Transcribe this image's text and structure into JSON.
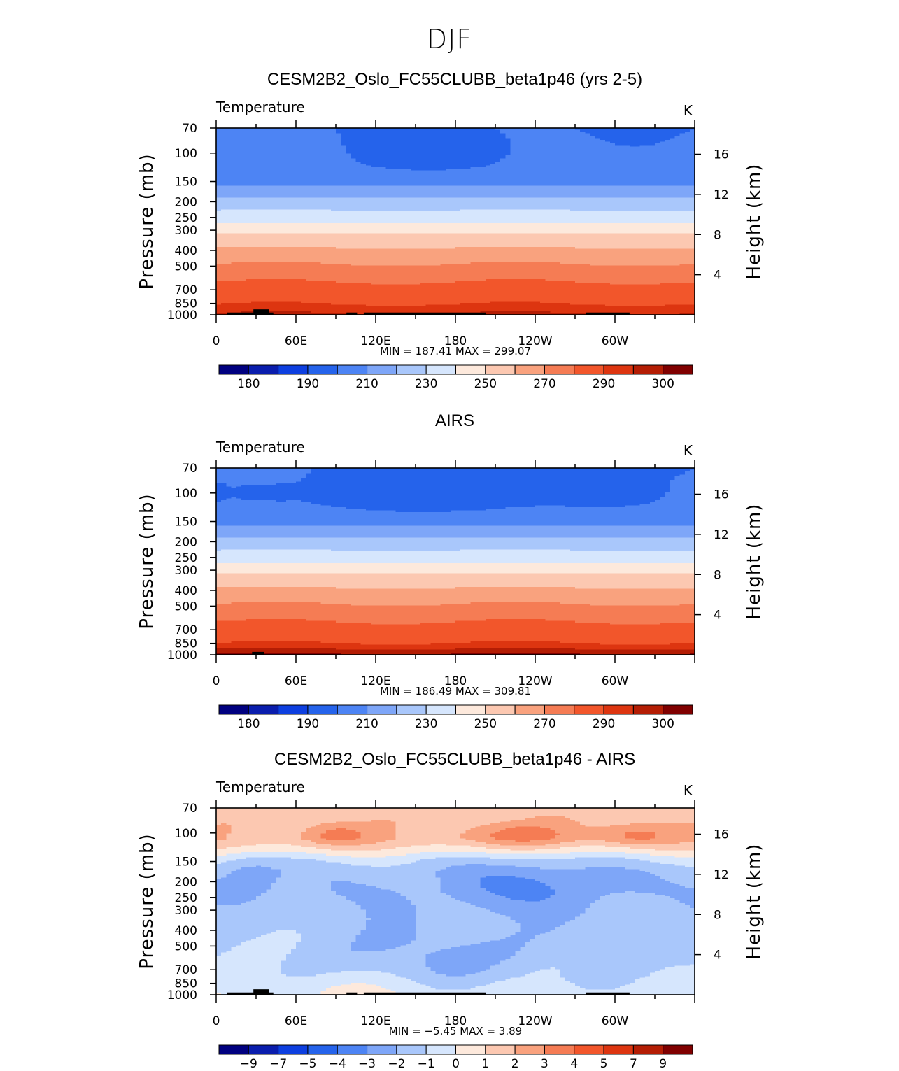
{
  "figure": {
    "suptitle": "DJF"
  },
  "chart_data": [
    {
      "type": "heatmap",
      "title": "CESM2B2_Oslo_FC55CLUBB_beta1p46 (yrs 2-5)",
      "variable": "Temperature",
      "units": "K",
      "ylabel": "Pressure (mb)",
      "y2label": "Height (km)",
      "x_ticks": [
        "0",
        "60E",
        "120E",
        "180",
        "120W",
        "60W"
      ],
      "x_tick_lon": [
        0,
        60,
        120,
        180,
        240,
        300
      ],
      "xlim": [
        0,
        360
      ],
      "y_ticks": [
        "70",
        "100",
        "150",
        "200",
        "250",
        "300",
        "400",
        "500",
        "700",
        "850",
        "1000"
      ],
      "y_tick_p": [
        70,
        100,
        150,
        200,
        250,
        300,
        400,
        500,
        700,
        850,
        1000
      ],
      "ylim": [
        1000,
        70
      ],
      "y2_ticks": [
        "16",
        "12",
        "8",
        "4"
      ],
      "y2_tick_km": [
        16,
        12,
        8,
        4
      ],
      "stats": "MIN  =  187.41   MAX  =  299.07",
      "min": 187.41,
      "max": 299.07,
      "levels": [
        175,
        180,
        185,
        190,
        200,
        210,
        220,
        230,
        240,
        250,
        260,
        270,
        280,
        290,
        295,
        300,
        305
      ],
      "colorbar_labels": [
        "180",
        "190",
        "210",
        "230",
        "250",
        "270",
        "290",
        "300"
      ],
      "colorbar_colors": [
        "#000080",
        "#0a1dad",
        "#0d3fe0",
        "#2563eb",
        "#4d84f4",
        "#7ea6f8",
        "#a9c7fb",
        "#d6e6fd",
        "#fde9dc",
        "#fcc8b1",
        "#f9a27e",
        "#f57c54",
        "#f2562b",
        "#dd3510",
        "#b41d04",
        "#800000"
      ],
      "profile": [
        {
          "p": 70,
          "t": 200
        },
        {
          "p": 120,
          "t": 201
        },
        {
          "p": 145,
          "t": 205
        },
        {
          "p": 168,
          "t": 213
        },
        {
          "p": 188,
          "t": 220
        },
        {
          "p": 222,
          "t": 229
        },
        {
          "p": 255,
          "t": 236
        },
        {
          "p": 288,
          "t": 244
        },
        {
          "p": 322,
          "t": 252
        },
        {
          "p": 368,
          "t": 258
        },
        {
          "p": 430,
          "t": 265
        },
        {
          "p": 520,
          "t": 273
        },
        {
          "p": 640,
          "t": 281
        },
        {
          "p": 790,
          "t": 287
        },
        {
          "p": 880,
          "t": 291
        },
        {
          "p": 960,
          "t": 294
        },
        {
          "p": 1000,
          "t": 296
        }
      ],
      "cold_cells": [
        {
          "lon": 165,
          "p": 96,
          "dlon": 40,
          "dp": 0.09,
          "delta": -8
        }
      ],
      "topography": [
        {
          "lon0": 8,
          "lon1": 43,
          "p_top": 968
        },
        {
          "lon0": 28,
          "lon1": 40,
          "p_top": 925
        },
        {
          "lon0": 98,
          "lon1": 106,
          "p_top": 968
        },
        {
          "lon0": 111,
          "lon1": 203,
          "p_top": 968
        },
        {
          "lon0": 278,
          "lon1": 311,
          "p_top": 968
        }
      ]
    },
    {
      "type": "heatmap",
      "title": "AIRS",
      "variable": "Temperature",
      "units": "K",
      "ylabel": "Pressure (mb)",
      "y2label": "Height (km)",
      "x_ticks": [
        "0",
        "60E",
        "120E",
        "180",
        "120W",
        "60W"
      ],
      "x_tick_lon": [
        0,
        60,
        120,
        180,
        240,
        300
      ],
      "xlim": [
        0,
        360
      ],
      "y_ticks": [
        "70",
        "100",
        "150",
        "200",
        "250",
        "300",
        "400",
        "500",
        "700",
        "850",
        "1000"
      ],
      "y_tick_p": [
        70,
        100,
        150,
        200,
        250,
        300,
        400,
        500,
        700,
        850,
        1000
      ],
      "ylim": [
        1000,
        70
      ],
      "y2_ticks": [
        "16",
        "12",
        "8",
        "4"
      ],
      "y2_tick_km": [
        16,
        12,
        8,
        4
      ],
      "stats": "MIN  =  186.49   MAX  =  309.81",
      "min": 186.49,
      "max": 309.81,
      "levels": [
        175,
        180,
        185,
        190,
        200,
        210,
        220,
        230,
        240,
        250,
        260,
        270,
        280,
        290,
        295,
        300,
        305
      ],
      "colorbar_labels": [
        "180",
        "190",
        "210",
        "230",
        "250",
        "270",
        "290",
        "300"
      ],
      "colorbar_colors": [
        "#000080",
        "#0a1dad",
        "#0d3fe0",
        "#2563eb",
        "#4d84f4",
        "#7ea6f8",
        "#a9c7fb",
        "#d6e6fd",
        "#fde9dc",
        "#fcc8b1",
        "#f9a27e",
        "#f57c54",
        "#f2562b",
        "#dd3510",
        "#b41d04",
        "#800000"
      ],
      "profile": [
        {
          "p": 70,
          "t": 200
        },
        {
          "p": 120,
          "t": 201
        },
        {
          "p": 145,
          "t": 205
        },
        {
          "p": 168,
          "t": 213
        },
        {
          "p": 188,
          "t": 220
        },
        {
          "p": 222,
          "t": 229
        },
        {
          "p": 255,
          "t": 236
        },
        {
          "p": 288,
          "t": 244
        },
        {
          "p": 322,
          "t": 252
        },
        {
          "p": 368,
          "t": 258
        },
        {
          "p": 430,
          "t": 265
        },
        {
          "p": 520,
          "t": 273
        },
        {
          "p": 640,
          "t": 281
        },
        {
          "p": 790,
          "t": 287
        },
        {
          "p": 860,
          "t": 291
        },
        {
          "p": 935,
          "t": 296
        },
        {
          "p": 1000,
          "t": 301
        }
      ],
      "cold_cells": [
        {
          "lon": 3,
          "p": 100,
          "dlon": 6,
          "dp": 0.03,
          "delta": -8
        },
        {
          "lon": 27,
          "p": 100,
          "dlon": 10,
          "dp": 0.03,
          "delta": -8
        },
        {
          "lon": 48,
          "p": 100,
          "dlon": 10,
          "dp": 0.03,
          "delta": -8
        },
        {
          "lon": 72,
          "p": 100,
          "dlon": 10,
          "dp": 0.03,
          "delta": -8
        },
        {
          "lon": 165,
          "p": 98,
          "dlon": 70,
          "dp": 0.1,
          "delta": -8
        },
        {
          "lon": 285,
          "p": 100,
          "dlon": 30,
          "dp": 0.05,
          "delta": -8
        }
      ],
      "topography": [
        {
          "lon0": 27,
          "lon1": 36,
          "p_top": 960
        }
      ]
    },
    {
      "type": "heatmap",
      "title": "CESM2B2_Oslo_FC55CLUBB_beta1p46 - AIRS",
      "variable": "Temperature",
      "units": "K",
      "ylabel": "Pressure (mb)",
      "y2label": "Height (km)",
      "x_ticks": [
        "0",
        "60E",
        "120E",
        "180",
        "120W",
        "60W"
      ],
      "x_tick_lon": [
        0,
        60,
        120,
        180,
        240,
        300
      ],
      "xlim": [
        0,
        360
      ],
      "y_ticks": [
        "70",
        "100",
        "150",
        "200",
        "250",
        "300",
        "400",
        "500",
        "700",
        "850",
        "1000"
      ],
      "y_tick_p": [
        70,
        100,
        150,
        200,
        250,
        300,
        400,
        500,
        700,
        850,
        1000
      ],
      "ylim": [
        1000,
        70
      ],
      "y2_ticks": [
        "16",
        "12",
        "8",
        "4"
      ],
      "y2_tick_km": [
        16,
        12,
        8,
        4
      ],
      "stats": "MIN  =    -5.45   MAX  =      3.89",
      "min": -5.45,
      "max": 3.89,
      "levels": [
        -11,
        -9,
        -7,
        -5,
        -4,
        -3,
        -2,
        -1,
        0,
        1,
        2,
        3,
        4,
        5,
        7,
        9,
        11
      ],
      "colorbar_labels": [
        "-9",
        "-7",
        "-5",
        "-4",
        "-3",
        "-2",
        "-1",
        "0",
        "1",
        "2",
        "3",
        "4",
        "5",
        "7",
        "9"
      ],
      "colorbar_colors": [
        "#000080",
        "#0a1dad",
        "#0d3fe0",
        "#2563eb",
        "#4d84f4",
        "#7ea6f8",
        "#a9c7fb",
        "#d6e6fd",
        "#fde9dc",
        "#fcc8b1",
        "#f9a27e",
        "#f57c54",
        "#f2562b",
        "#dd3510",
        "#b41d04",
        "#800000"
      ],
      "profile": [
        {
          "p": 70,
          "t": 1.5
        },
        {
          "p": 110,
          "t": 1.8
        },
        {
          "p": 130,
          "t": 0.5
        },
        {
          "p": 145,
          "t": -0.7
        },
        {
          "p": 170,
          "t": -1.5
        },
        {
          "p": 230,
          "t": -1.8
        },
        {
          "p": 400,
          "t": -1.6
        },
        {
          "p": 600,
          "t": -1.4
        },
        {
          "p": 760,
          "t": -1.2
        },
        {
          "p": 900,
          "t": -0.8
        },
        {
          "p": 1000,
          "t": -0.5
        }
      ],
      "cold_cells": [
        {
          "lon": 90,
          "p": 102,
          "dlon": 25,
          "dp": 0.06,
          "delta": 1.6
        },
        {
          "lon": 230,
          "p": 102,
          "dlon": 45,
          "dp": 0.06,
          "delta": 1.6
        },
        {
          "lon": 315,
          "p": 102,
          "dlon": 28,
          "dp": 0.06,
          "delta": 1.6
        },
        {
          "lon": 235,
          "p": 205,
          "dlon": 70,
          "dp": 0.14,
          "delta": -1.4
        },
        {
          "lon": 25,
          "p": 190,
          "dlon": 25,
          "dp": 0.12,
          "delta": -1.3
        },
        {
          "lon": 25,
          "p": 480,
          "dlon": 45,
          "dp": 0.28,
          "delta": 0.5
        },
        {
          "lon": 165,
          "p": 640,
          "dlon": 55,
          "dp": 0.18,
          "delta": -1.0
        },
        {
          "lon": 120,
          "p": 900,
          "dlon": 80,
          "dp": 0.1,
          "delta": 0.9
        },
        {
          "lon": 330,
          "p": 500,
          "dlon": 25,
          "dp": 0.3,
          "delta": 0.4
        }
      ],
      "topography": [
        {
          "lon0": 8,
          "lon1": 43,
          "p_top": 968
        },
        {
          "lon0": 28,
          "lon1": 40,
          "p_top": 925
        },
        {
          "lon0": 98,
          "lon1": 106,
          "p_top": 968
        },
        {
          "lon0": 111,
          "lon1": 203,
          "p_top": 968
        },
        {
          "lon0": 278,
          "lon1": 311,
          "p_top": 968
        }
      ]
    }
  ]
}
